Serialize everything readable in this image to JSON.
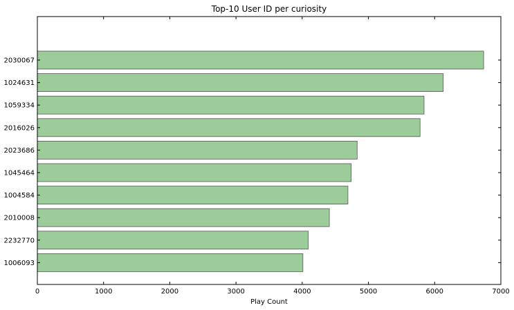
{
  "chart_data": {
    "type": "bar",
    "orientation": "horizontal",
    "title": "Top-10 User ID per curiosity",
    "xlabel": "Play Count",
    "ylabel": "",
    "xlim": [
      0,
      7000
    ],
    "x_ticks": [
      0,
      1000,
      2000,
      3000,
      4000,
      5000,
      6000,
      7000
    ],
    "grid": false,
    "bar_color": "#9ccc99",
    "bar_edge_color": "#555555",
    "categories": [
      "2030067",
      "1024631",
      "1059334",
      "2016026",
      "2023686",
      "1045464",
      "1004584",
      "2010008",
      "2232770",
      "1006093"
    ],
    "values": [
      6740,
      6130,
      5840,
      5780,
      4830,
      4740,
      4690,
      4410,
      4090,
      4010
    ]
  }
}
